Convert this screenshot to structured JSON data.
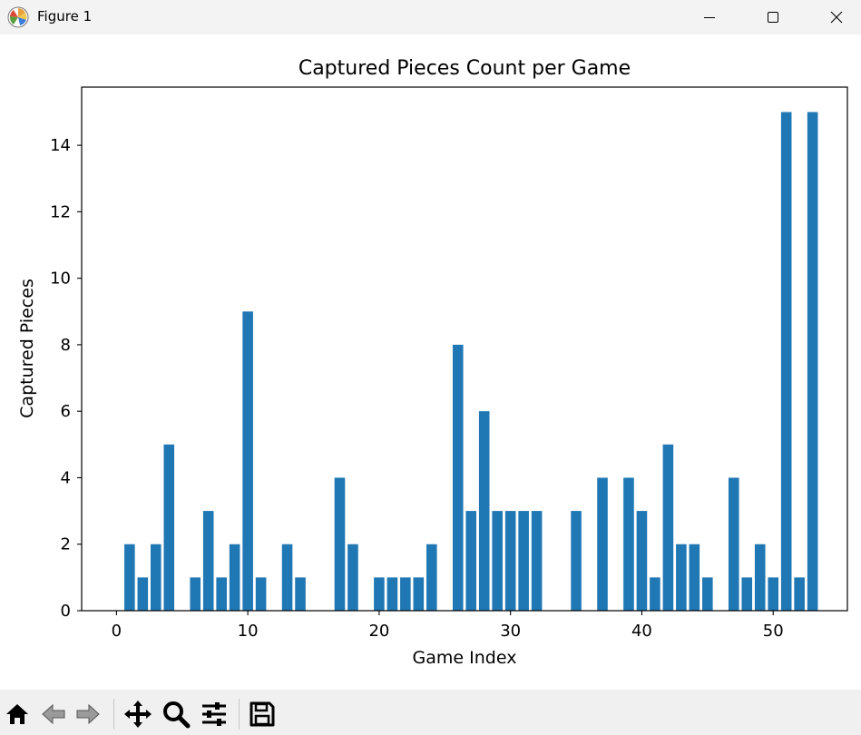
{
  "window": {
    "title": "Figure 1",
    "icons": {
      "app": "matplotlib-logo-icon",
      "minimize": "minimize-icon",
      "maximize": "maximize-icon",
      "close": "close-icon"
    }
  },
  "toolbar": {
    "buttons": [
      "home-icon",
      "back-arrow-icon",
      "forward-arrow-icon",
      "pan-icon",
      "zoom-icon",
      "subplots-config-icon",
      "save-icon"
    ]
  },
  "chart_data": {
    "type": "bar",
    "title": "Captured Pieces Count per Game",
    "xlabel": "Game Index",
    "ylabel": "Captured Pieces",
    "x": [
      0,
      1,
      2,
      3,
      4,
      5,
      6,
      7,
      8,
      9,
      10,
      11,
      12,
      13,
      14,
      15,
      16,
      17,
      18,
      19,
      20,
      21,
      22,
      23,
      24,
      25,
      26,
      27,
      28,
      29,
      30,
      31,
      32,
      33,
      34,
      35,
      36,
      37,
      38,
      39,
      40,
      41,
      42,
      43,
      44,
      45,
      46,
      47,
      48,
      49,
      50,
      51,
      52,
      53
    ],
    "values": [
      0,
      2,
      1,
      2,
      5,
      0,
      1,
      3,
      1,
      2,
      9,
      1,
      0,
      2,
      1,
      0,
      0,
      4,
      2,
      0,
      1,
      1,
      1,
      1,
      2,
      0,
      8,
      3,
      6,
      3,
      3,
      3,
      3,
      0,
      0,
      3,
      0,
      4,
      0,
      4,
      3,
      1,
      5,
      2,
      2,
      1,
      0,
      4,
      1,
      2,
      1,
      15,
      1,
      15
    ],
    "xlim": [
      -2.65,
      55.65
    ],
    "ylim": [
      0,
      15.75
    ],
    "xticks": [
      0,
      10,
      20,
      30,
      40,
      50
    ],
    "yticks": [
      0,
      2,
      4,
      6,
      8,
      10,
      12,
      14
    ],
    "bar_color": "#1f77b4",
    "grid": false
  }
}
